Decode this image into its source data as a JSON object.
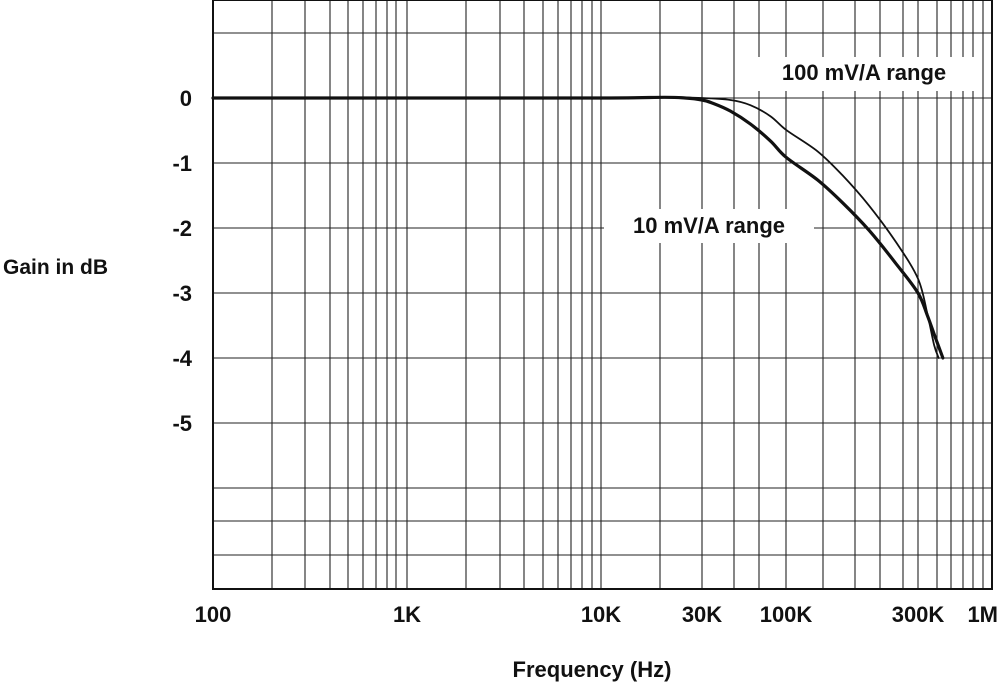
{
  "chart_data": {
    "type": "line",
    "title": "",
    "xlabel": "Frequency (Hz)",
    "ylabel": "Gain in dB",
    "x_scale": "log",
    "xlim": [
      100,
      1000000
    ],
    "ylim": [
      -7.5,
      1.5
    ],
    "grid": true,
    "legend": "none",
    "x_ticks": [
      {
        "value": 100,
        "label": "100"
      },
      {
        "value": 1000,
        "label": "1K"
      },
      {
        "value": 10000,
        "label": "10K"
      },
      {
        "value": 30000,
        "label": "30K"
      },
      {
        "value": 100000,
        "label": "100K"
      },
      {
        "value": 300000,
        "label": "300K"
      },
      {
        "value": 1000000,
        "label": "1M"
      }
    ],
    "y_ticks": [
      {
        "value": 0,
        "label": "0"
      },
      {
        "value": -1,
        "label": "-1"
      },
      {
        "value": -2,
        "label": "-2"
      },
      {
        "value": -3,
        "label": "-3"
      },
      {
        "value": -4,
        "label": "-4"
      },
      {
        "value": -5,
        "label": "-5"
      }
    ],
    "series": [
      {
        "name": "100 mV/A range",
        "x": [
          100,
          1000,
          10000,
          20000,
          30000,
          45000,
          60000,
          80000,
          100000,
          130000,
          160000,
          200000,
          250000,
          300000,
          350000,
          390000,
          420000
        ],
        "y": [
          0,
          0,
          0,
          0.01,
          0,
          -0.03,
          -0.11,
          -0.28,
          -0.49,
          -0.82,
          -1.19,
          -1.66,
          -2.22,
          -2.78,
          -3.33,
          -3.8,
          -4.0
        ]
      },
      {
        "name": "10 mV/A range",
        "x": [
          100,
          1000,
          10000,
          20000,
          25000,
          30000,
          35000,
          45000,
          60000,
          80000,
          100000,
          130000,
          160000,
          200000,
          250000,
          300000,
          350000,
          400000,
          450000
        ],
        "y": [
          0,
          0,
          0,
          0.01,
          0,
          -0.03,
          -0.08,
          -0.2,
          -0.4,
          -0.66,
          -0.91,
          -1.26,
          -1.61,
          -2.04,
          -2.55,
          -3.0,
          -3.35,
          -3.7,
          -4.0
        ]
      }
    ],
    "annotations": [
      {
        "text": "100 mV/A range",
        "series": "100 mV/A range"
      },
      {
        "text": "10 mV/A range",
        "series": "10 mV/A range"
      }
    ]
  }
}
